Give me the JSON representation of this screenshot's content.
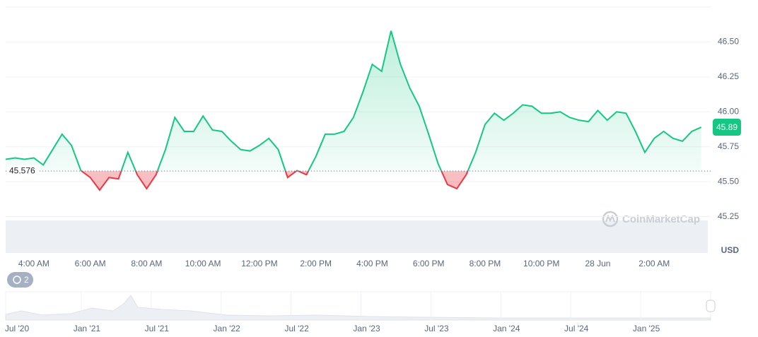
{
  "chart_data": {
    "type": "line",
    "categories": [
      null,
      null,
      null,
      "4:00 AM",
      null,
      null,
      null,
      null,
      null,
      "6:00 AM",
      null,
      null,
      null,
      null,
      null,
      "8:00 AM",
      null,
      null,
      null,
      null,
      null,
      "10:00 AM",
      null,
      null,
      null,
      null,
      null,
      "12:00 PM",
      null,
      null,
      null,
      null,
      null,
      "2:00 PM",
      null,
      null,
      null,
      null,
      null,
      "4:00 PM",
      null,
      null,
      null,
      null,
      null,
      "6:00 PM",
      null,
      null,
      null,
      null,
      null,
      "8:00 PM",
      null,
      null,
      null,
      null,
      null,
      "10:00 PM",
      null,
      null,
      null,
      null,
      null,
      "28 Jun",
      null,
      null,
      null,
      null,
      null,
      "2:00 AM",
      null,
      null,
      null,
      null,
      null
    ],
    "series": [
      {
        "color": "#16c784",
        "negative_color": "#ea3943",
        "values": [
          45.66,
          45.67,
          45.66,
          45.67,
          45.62,
          45.73,
          45.84,
          45.76,
          45.58,
          45.53,
          45.44,
          45.53,
          45.52,
          45.71,
          45.55,
          45.45,
          45.55,
          45.73,
          45.96,
          45.86,
          45.86,
          45.97,
          45.87,
          45.86,
          45.79,
          45.73,
          45.72,
          45.76,
          45.81,
          45.73,
          45.53,
          45.58,
          45.55,
          45.68,
          45.84,
          45.84,
          45.86,
          45.96,
          46.14,
          46.34,
          46.29,
          46.58,
          46.34,
          46.17,
          46.04,
          45.84,
          45.63,
          45.48,
          45.45,
          45.55,
          45.71,
          45.91,
          45.99,
          45.94,
          45.99,
          46.05,
          46.04,
          45.99,
          45.99,
          46.0,
          45.96,
          45.94,
          45.93,
          46.01,
          45.94,
          46.0,
          45.99,
          45.86,
          45.71,
          45.81,
          45.86,
          45.81,
          45.79,
          45.86,
          45.89
        ]
      }
    ],
    "baseline": 45.576,
    "current_price": 45.89,
    "ylim": [
      44.99,
      46.75
    ],
    "yticks": [
      {
        "value": 45.25,
        "label": "45.25"
      },
      {
        "value": 45.5,
        "label": "45.50"
      },
      {
        "value": 45.75,
        "label": "45.75"
      },
      {
        "value": 46.0,
        "label": "46.00"
      },
      {
        "value": 46.25,
        "label": "46.25"
      },
      {
        "value": 46.5,
        "label": "46.50"
      }
    ],
    "y_unit": "USD",
    "grid": true,
    "watermark": "CoinMarketCap",
    "badge": 2,
    "navigator_labels": [
      "Jul '20",
      "Jan '21",
      "Jul '21",
      "Jan '22",
      "Jul '22",
      "Jan '23",
      "Jul '23",
      "Jan '24",
      "Jul '24",
      "Jan '25"
    ]
  }
}
